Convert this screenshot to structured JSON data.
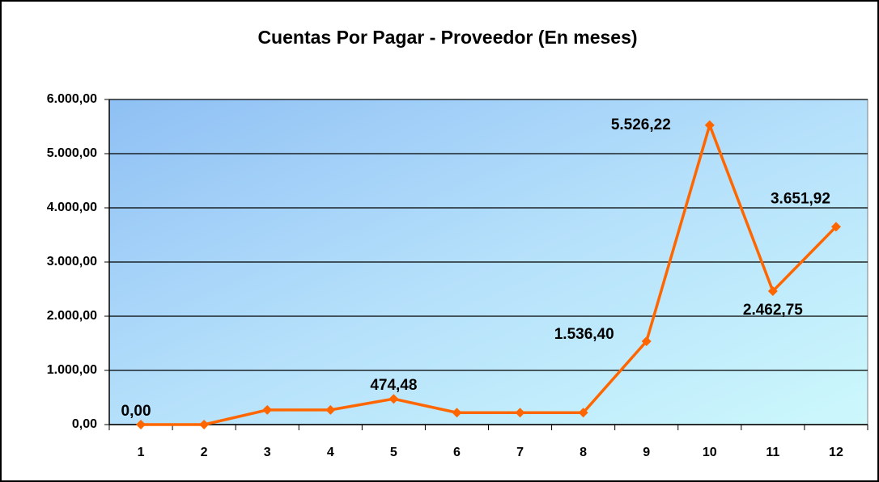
{
  "chart_data": {
    "type": "line",
    "title": "Cuentas Por Pagar - Proveedor (En meses)",
    "categories": [
      "1",
      "2",
      "3",
      "4",
      "5",
      "6",
      "7",
      "8",
      "9",
      "10",
      "11",
      "12"
    ],
    "series": [
      {
        "name": null,
        "color": "#ff6600",
        "values": [
          0,
          0,
          270,
          270,
          474.48,
          220,
          220,
          220,
          1536.4,
          5526.22,
          2462.75,
          3651.92
        ],
        "value_labels": [
          "0,00",
          null,
          null,
          null,
          "474,48",
          null,
          null,
          null,
          "1.536,40",
          "5.526,22",
          "2.462,75",
          "3.651,92"
        ]
      }
    ],
    "ylim": [
      0,
      6000
    ],
    "yticks": [
      {
        "value": 0,
        "label": "0,00"
      },
      {
        "value": 1000,
        "label": "1.000,00"
      },
      {
        "value": 2000,
        "label": "2.000,00"
      },
      {
        "value": 3000,
        "label": "3.000,00"
      },
      {
        "value": 4000,
        "label": "4.000,00"
      },
      {
        "value": 5000,
        "label": "5.000,00"
      },
      {
        "value": 6000,
        "label": "6.000,00"
      }
    ],
    "grid": true
  }
}
